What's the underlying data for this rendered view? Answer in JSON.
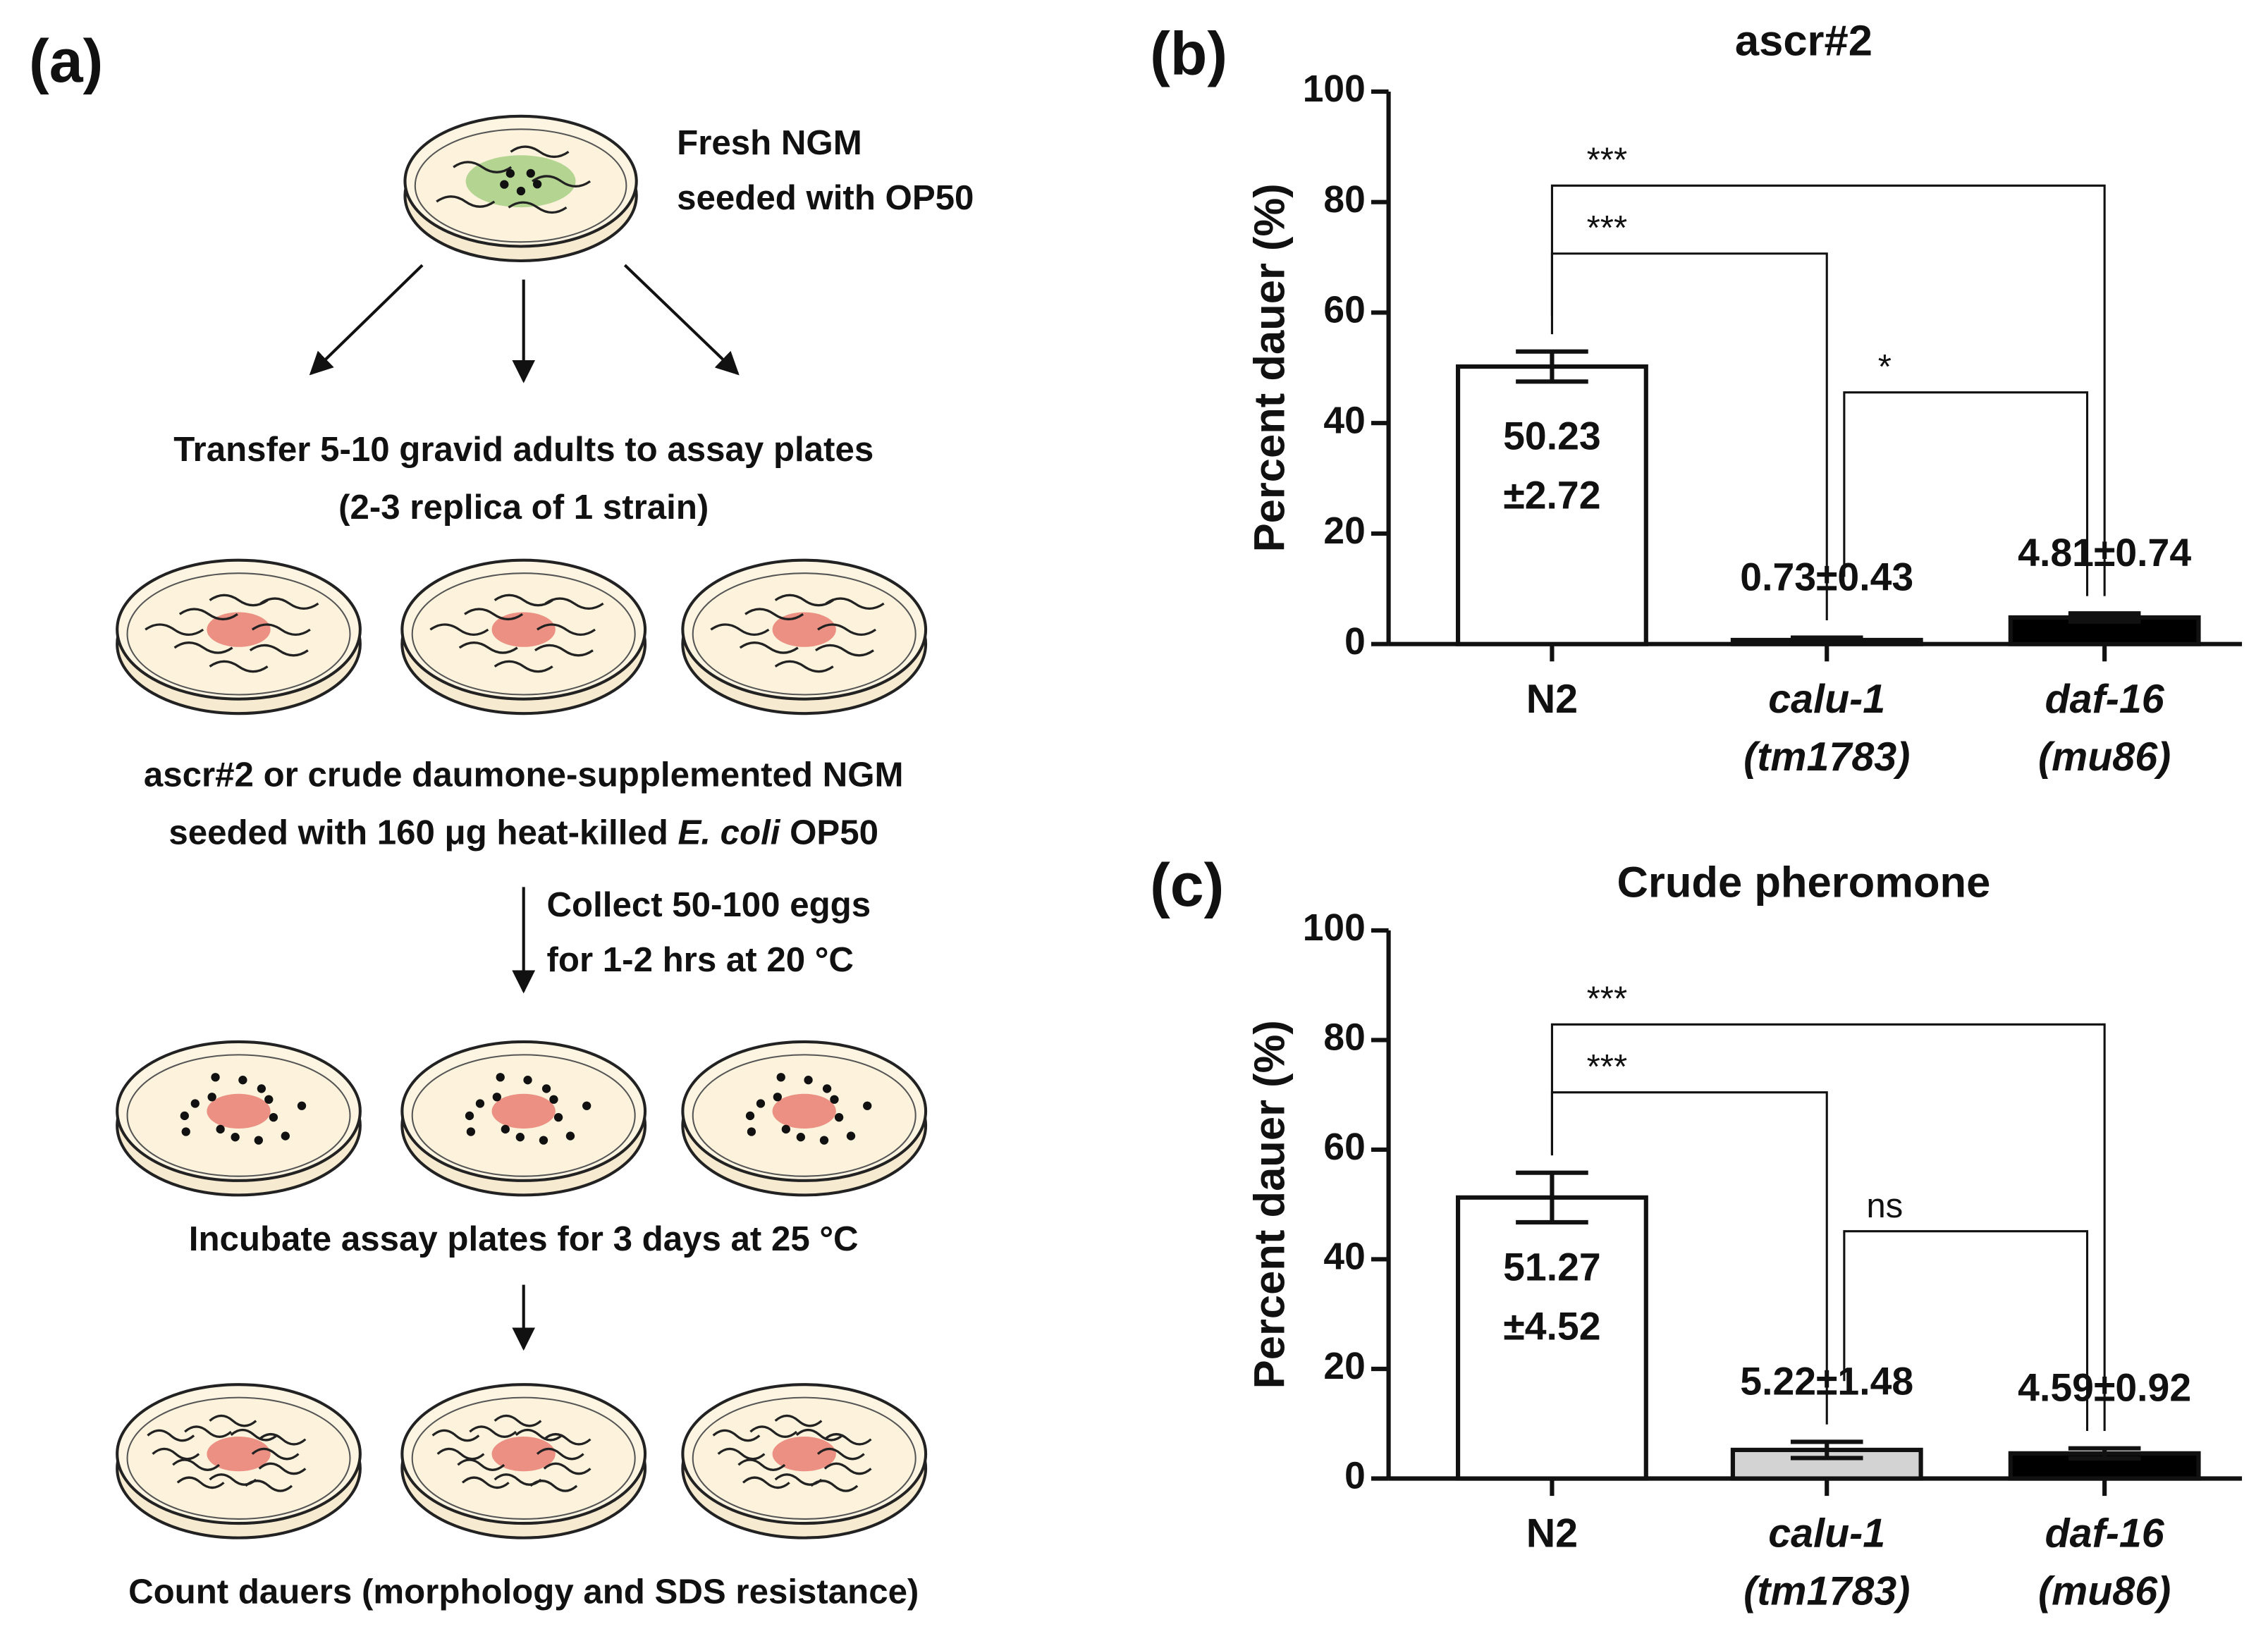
{
  "diagram": {
    "panel_label": "(a)",
    "start": [
      "Fresh NGM",
      "seeded with OP50"
    ],
    "transfer": [
      "Transfer 5-10 gravid adults to assay plates",
      "(2-3 replica of 1 strain)"
    ],
    "plates": [
      "ascr#2 or crude daumone-supplemented NGM",
      [
        "seeded with 160 μg heat-killed ",
        "E. coli",
        " OP50"
      ]
    ],
    "collect": [
      "Collect 50-100 eggs",
      "for 1-2 hrs at 20 °C"
    ],
    "incubate": "Incubate assay plates for 3 days at 25 °C",
    "count": "Count dauers (morphology and SDS resistance)"
  },
  "chart_data": [
    {
      "type": "bar",
      "panel_label": "(b)",
      "title": "ascr#2",
      "y_label": "Percent dauer (%)",
      "categories": [
        "N2",
        "calu-1 (tm1783)",
        "daf-16 (mu86)"
      ],
      "category_style": [
        "normal",
        "italic",
        "italic"
      ],
      "values": [
        50.23,
        0.73,
        4.81
      ],
      "errors": [
        2.72,
        0.43,
        0.74
      ],
      "value_labels": [
        "50.23 ±2.72",
        "0.73±0.43",
        "4.81±0.74"
      ],
      "colors": [
        "#ffffff",
        "#000000",
        "#000000"
      ],
      "ylim": [
        0,
        100
      ],
      "yticks": [
        0,
        20,
        40,
        60,
        80,
        100
      ],
      "brackets": [
        {
          "from": 0,
          "to": 2,
          "label": "***"
        },
        {
          "from": 0,
          "to": 1,
          "label": "***"
        },
        {
          "from": 1,
          "to": 2,
          "label": "*"
        }
      ]
    },
    {
      "type": "bar",
      "panel_label": "(c)",
      "title": "Crude pheromone",
      "y_label": "Percent dauer (%)",
      "categories": [
        "N2",
        "calu-1 (tm1783)",
        "daf-16 (mu86)"
      ],
      "category_style": [
        "normal",
        "italic",
        "italic"
      ],
      "values": [
        51.27,
        5.22,
        4.59
      ],
      "errors": [
        4.52,
        1.48,
        0.92
      ],
      "value_labels": [
        "51.27 ±4.52",
        "5.22±1.48",
        "4.59±0.92"
      ],
      "colors": [
        "#ffffff",
        "#d3d3d3",
        "#000000"
      ],
      "ylim": [
        0,
        100
      ],
      "yticks": [
        0,
        20,
        40,
        60,
        80,
        100
      ],
      "brackets": [
        {
          "from": 0,
          "to": 2,
          "label": "***"
        },
        {
          "from": 0,
          "to": 1,
          "label": "***"
        },
        {
          "from": 1,
          "to": 2,
          "label": "ns"
        }
      ]
    }
  ]
}
